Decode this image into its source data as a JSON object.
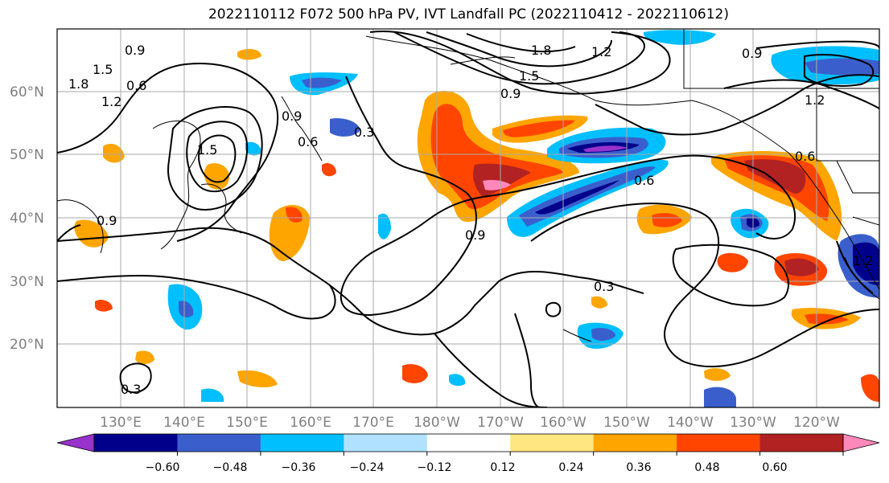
{
  "title": "2022110112 F072 500 hPa PV, IVT Landfall PC (2022110412 - 2022110612)",
  "lat_labels": [
    "60°N",
    "50°N",
    "40°N",
    "30°N",
    "20°N"
  ],
  "lon_labels": [
    "130°E",
    "140°E",
    "150°E",
    "160°E",
    "170°E",
    "180°W",
    "170°W",
    "160°W",
    "150°W",
    "140°W",
    "130°W",
    "120°W"
  ],
  "contour_labels": [
    "0.9",
    "1.5",
    "1.8",
    "1.2",
    "0.6",
    "0.9",
    "0.6",
    "1.5",
    "0.3",
    "1.8",
    "1.2",
    "1.5",
    "0.9",
    "1.2",
    "0.9",
    "0.6",
    "0.6",
    "0.9",
    "0.3",
    "0.3",
    "0.9",
    "1.2"
  ],
  "colorbar": {
    "tick_labels": [
      "−0.60",
      "−0.48",
      "−0.36",
      "−0.24",
      "−0.12",
      "0.12",
      "0.24",
      "0.36",
      "0.48",
      "0.60"
    ],
    "colors": [
      "#9932cc",
      "#00008b",
      "#3a5fcd",
      "#00bfff",
      "#b0e2ff",
      "#ffffff",
      "#ffe680",
      "#ffa500",
      "#ff4500",
      "#b22222",
      "#ff88bb"
    ]
  }
}
